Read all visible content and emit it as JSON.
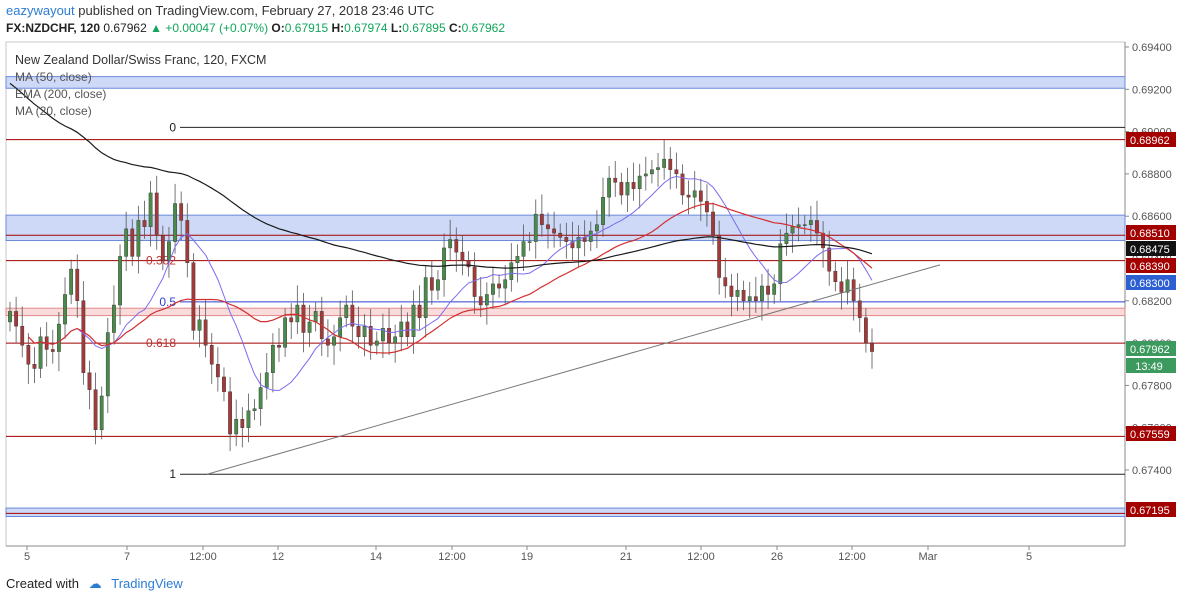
{
  "header": {
    "user": "eazywayout",
    "published_text": "published on TradingView.com, February 27, 2018 23:46 UTC",
    "symbol": "FX:NZDCHF, 120",
    "last": "0.67962",
    "change": "+0.00047 (+0.07%)",
    "o_label": "O:",
    "o": "0.67915",
    "h_label": "H:",
    "h": "0.67974",
    "l_label": "L:",
    "l": "0.67895",
    "c_label": "C:",
    "c": "0.67962"
  },
  "legend": {
    "title": "New Zealand Dollar/Swiss Franc, 120, FXCM",
    "items": [
      "MA (50, close)",
      "EMA (200, close)",
      "MA (20, close)"
    ]
  },
  "footer": {
    "created_with": "Created with",
    "brand": "TradingView"
  },
  "colors": {
    "up": "#4a8a4a",
    "down": "#a33a3a",
    "hline": "#a30000",
    "ema200": "#1a1a1a",
    "ma50": "#d32f2f",
    "ma20": "#7b6cf0",
    "trend": "#777777",
    "zone_blue": "#9db4f0",
    "zone_red": "#f3b8b8"
  },
  "chart_data": {
    "type": "candlestick",
    "ylim": [
      0.6712,
      0.695
    ],
    "yticks": [
      "0.69400",
      "0.69200",
      "0.69000",
      "0.68800",
      "0.68600",
      "0.68400",
      "0.68200",
      "0.68000",
      "0.67800",
      "0.67600",
      "0.67400"
    ],
    "xticks": [
      "5",
      "7",
      "12:00",
      "12",
      "14",
      "12:00",
      "19",
      "21",
      "12:00",
      "26",
      "12:00",
      "Mar",
      "5"
    ],
    "price_labels": [
      {
        "value": "0.68962",
        "kind": "red"
      },
      {
        "value": "0.68510",
        "kind": "red"
      },
      {
        "value": "0.68475",
        "kind": "black"
      },
      {
        "value": "0.68390",
        "kind": "red"
      },
      {
        "value": "0.68300",
        "kind": "blue"
      },
      {
        "value": "0.67962",
        "kind": "green"
      },
      {
        "value": "13:49",
        "kind": "green"
      },
      {
        "value": "0.67559",
        "kind": "red"
      },
      {
        "value": "0.67195",
        "kind": "red"
      }
    ],
    "horizontal_lines": [
      0.68962,
      0.6851,
      0.6839,
      0.68,
      0.67559,
      0.67195
    ],
    "fib_levels": [
      {
        "label": "0",
        "value": 0.6902
      },
      {
        "label": "0.382",
        "value": 0.6839
      },
      {
        "label": "0.5",
        "value": 0.68195
      },
      {
        "label": "0.618",
        "value": 0.68
      },
      {
        "label": "1",
        "value": 0.6738
      }
    ],
    "zones": [
      {
        "color": "blue",
        "low": 0.69205,
        "high": 0.6926
      },
      {
        "color": "blue",
        "low": 0.68485,
        "high": 0.68605
      },
      {
        "color": "red",
        "low": 0.6813,
        "high": 0.68165
      },
      {
        "color": "blue",
        "low": 0.6718,
        "high": 0.6722
      }
    ],
    "trendline": {
      "from": [
        0.6738
      ],
      "to": [
        0.6837
      ]
    },
    "candles_close": [
      0.6815,
      0.6808,
      0.6799,
      0.679,
      0.6788,
      0.6803,
      0.6797,
      0.6796,
      0.6809,
      0.6823,
      0.6835,
      0.682,
      0.6786,
      0.6778,
      0.6759,
      0.6775,
      0.6805,
      0.6818,
      0.6841,
      0.6854,
      0.6841,
      0.6858,
      0.6855,
      0.6871,
      0.6851,
      0.6839,
      0.6848,
      0.6866,
      0.6858,
      0.6838,
      0.6806,
      0.6811,
      0.6799,
      0.679,
      0.6784,
      0.6777,
      0.6757,
      0.6764,
      0.676,
      0.6768,
      0.6769,
      0.6779,
      0.6786,
      0.6799,
      0.6798,
      0.6812,
      0.681,
      0.6818,
      0.6805,
      0.681,
      0.6815,
      0.6802,
      0.6799,
      0.6803,
      0.6812,
      0.6818,
      0.6808,
      0.6803,
      0.6808,
      0.6799,
      0.6801,
      0.6807,
      0.68,
      0.6803,
      0.681,
      0.6803,
      0.6818,
      0.6812,
      0.6831,
      0.6825,
      0.683,
      0.6845,
      0.6849,
      0.6843,
      0.6839,
      0.6836,
      0.6822,
      0.6818,
      0.6823,
      0.6828,
      0.6826,
      0.683,
      0.6838,
      0.6841,
      0.6848,
      0.6848,
      0.6861,
      0.6856,
      0.6854,
      0.6852,
      0.685,
      0.6848,
      0.6845,
      0.685,
      0.6848,
      0.6853,
      0.6856,
      0.6869,
      0.6878,
      0.6876,
      0.687,
      0.6876,
      0.6873,
      0.6879,
      0.688,
      0.6882,
      0.6883,
      0.6887,
      0.6882,
      0.688,
      0.687,
      0.6869,
      0.6872,
      0.6867,
      0.6862,
      0.6851,
      0.6831,
      0.6827,
      0.6822,
      0.6825,
      0.682,
      0.6822,
      0.682,
      0.6827,
      0.6823,
      0.6828,
      0.6847,
      0.6852,
      0.6855,
      0.6856,
      0.6856,
      0.6858,
      0.6852,
      0.6845,
      0.6834,
      0.6829,
      0.6824,
      0.683,
      0.682,
      0.6812,
      0.68,
      0.6796
    ]
  }
}
